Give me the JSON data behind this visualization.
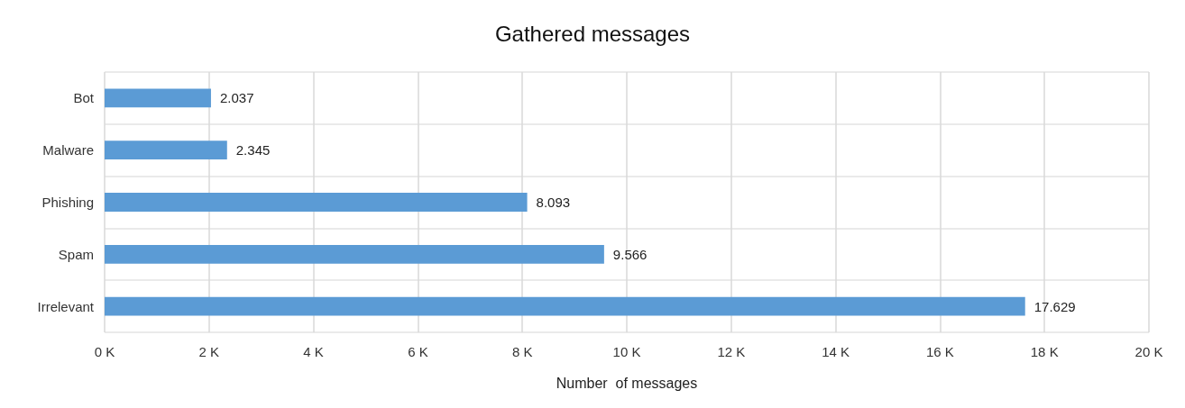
{
  "chart_data": {
    "type": "bar",
    "orientation": "horizontal",
    "title": "Gathered messages",
    "xlabel": "Number  of messages",
    "categories": [
      "Bot",
      "Malware",
      "Phishing",
      "Spam",
      "Irrelevant"
    ],
    "values": [
      2037,
      2345,
      8093,
      9566,
      17629
    ],
    "value_labels": [
      "2.037",
      "2.345",
      "8.093",
      "9.566",
      "17.629"
    ],
    "color": "#5b9bd5",
    "xlim": [
      0,
      20000
    ],
    "xticks": [
      {
        "value": 0,
        "label": "0 K"
      },
      {
        "value": 2000,
        "label": "2 K"
      },
      {
        "value": 4000,
        "label": "4 K"
      },
      {
        "value": 6000,
        "label": "6 K"
      },
      {
        "value": 8000,
        "label": "8 K"
      },
      {
        "value": 10000,
        "label": "10 K"
      },
      {
        "value": 12000,
        "label": "12 K"
      },
      {
        "value": 14000,
        "label": "14 K"
      },
      {
        "value": 16000,
        "label": "16 K"
      },
      {
        "value": 18000,
        "label": "18 K"
      },
      {
        "value": 20000,
        "label": "20 K"
      }
    ],
    "grid": true
  }
}
